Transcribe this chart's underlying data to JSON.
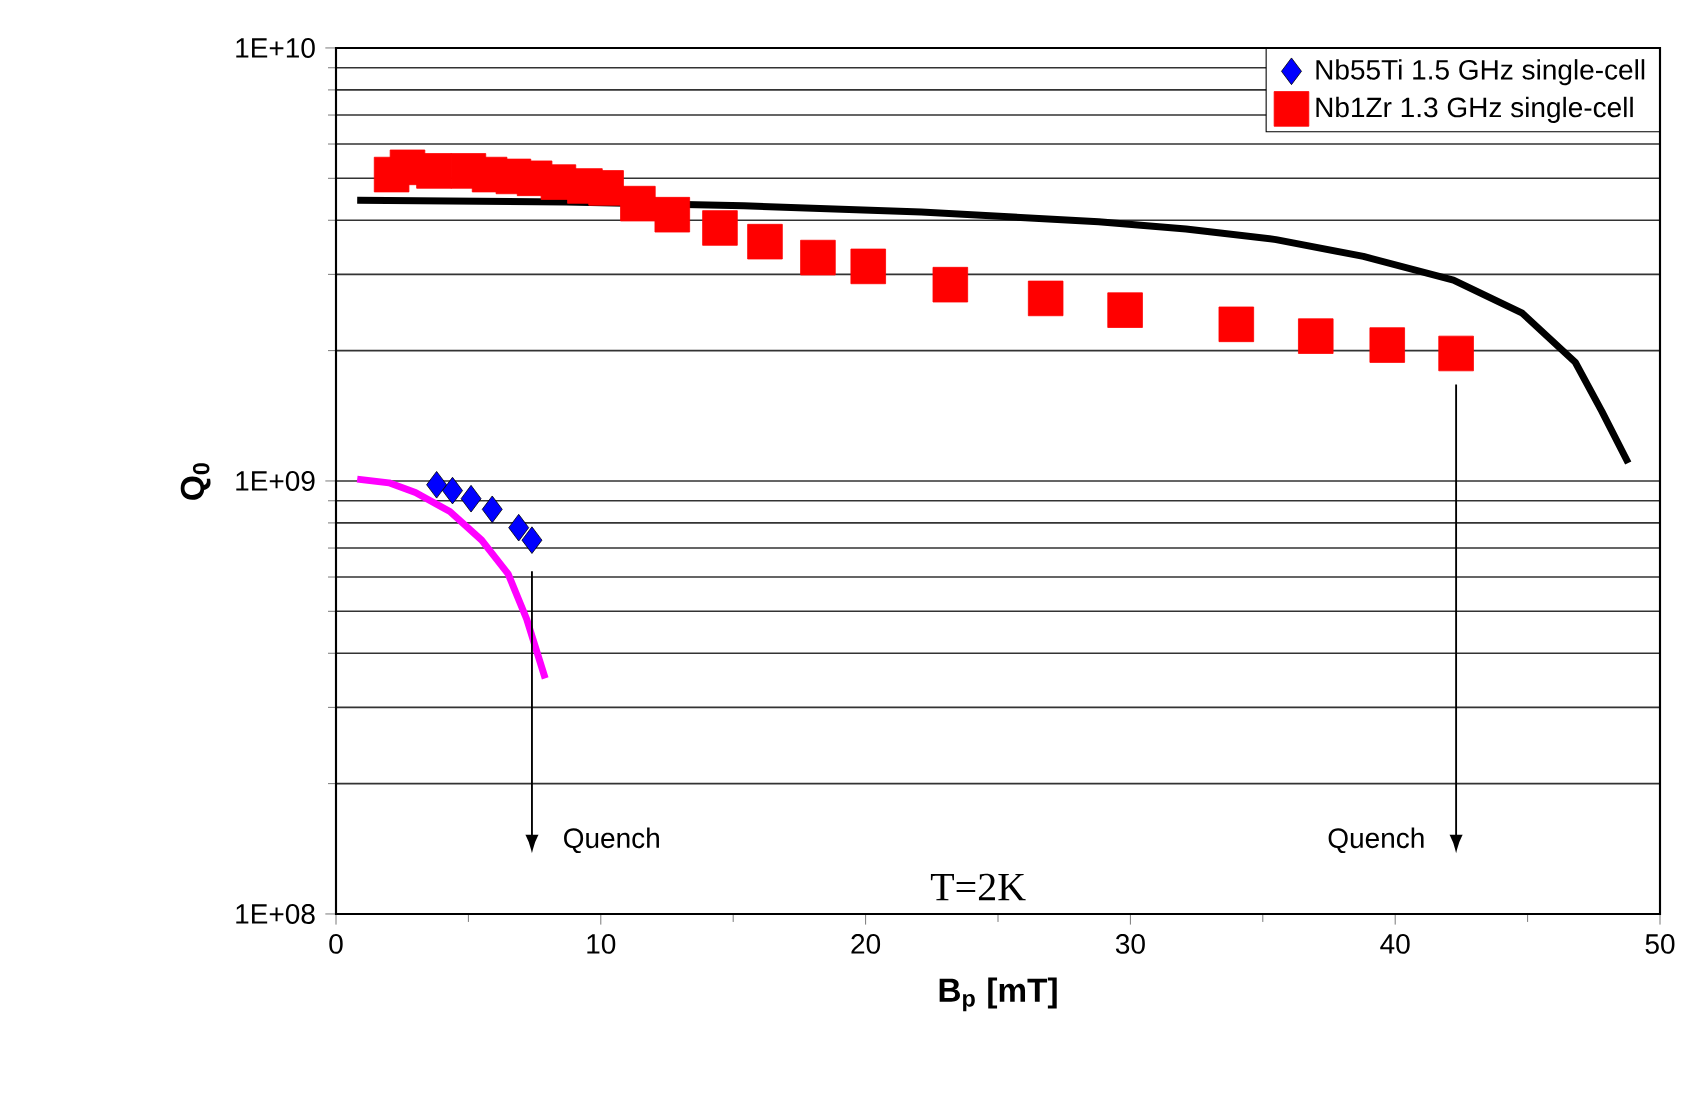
{
  "chart_data": {
    "type": "scatter",
    "xlabel": "B$_{p}$ [mT]",
    "ylabel": "Q$_{0}$",
    "xlim": [
      0,
      50
    ],
    "ylim": [
      100000000.0,
      10000000000.0
    ],
    "xticks": [
      0,
      10,
      20,
      30,
      40,
      50
    ],
    "yticks": [
      {
        "value": 100000000.0,
        "label": "1E+08"
      },
      {
        "value": 1000000000.0,
        "label": "1E+09"
      },
      {
        "value": 10000000000.0,
        "label": "1E+10"
      }
    ],
    "log": "y",
    "grid": "y",
    "legend": "top right",
    "series": [
      {
        "name": "Nb55Ti 1.5 GHz single-cell",
        "marker": "diamond",
        "color": "#0000ff",
        "x": [
          3.8,
          4.4,
          5.1,
          5.9,
          6.9,
          7.4
        ],
        "values": [
          980000000.0,
          950000000.0,
          910000000.0,
          860000000.0,
          780000000.0,
          730000000.0
        ]
      },
      {
        "name": "Nb1Zr 1.3 GHz single-cell",
        "marker": "square",
        "color": "#ff0000",
        "x": [
          2.1,
          2.7,
          3.7,
          5.0,
          5.8,
          6.7,
          7.5,
          8.4,
          9.4,
          10.2,
          11.4,
          12.7,
          14.5,
          16.2,
          18.2,
          20.1,
          23.2,
          26.8,
          29.8,
          34.0,
          37.0,
          39.7,
          42.3
        ],
        "values": [
          5100000000.0,
          5300000000.0,
          5200000000.0,
          5200000000.0,
          5100000000.0,
          5050000000.0,
          5000000000.0,
          4900000000.0,
          4800000000.0,
          4750000000.0,
          4370000000.0,
          4120000000.0,
          3840000000.0,
          3570000000.0,
          3280000000.0,
          3130000000.0,
          2840000000.0,
          2640000000.0,
          2480000000.0,
          2300000000.0,
          2160000000.0,
          2060000000.0,
          1970000000.0
        ]
      },
      {
        "type": "line",
        "marker": "none",
        "color": "#000000",
        "x": [
          0.8,
          8.7,
          15.4,
          22.1,
          28.8,
          32.1,
          35.5,
          38.8,
          42.2,
          44.8,
          46.8,
          47.8,
          48.8
        ],
        "values": [
          4450000000.0,
          4410000000.0,
          4320000000.0,
          4180000000.0,
          3970000000.0,
          3820000000.0,
          3610000000.0,
          3300000000.0,
          2910000000.0,
          2440000000.0,
          1880000000.0,
          1450000000.0,
          1100000000.0
        ]
      },
      {
        "type": "line",
        "marker": "none",
        "color": "#ff00ff",
        "x": [
          0.8,
          2.0,
          3.0,
          4.3,
          5.5,
          6.5,
          7.2,
          7.9
        ],
        "values": [
          1010000000.0,
          990000000.0,
          940000000.0,
          850000000.0,
          730000000.0,
          610000000.0,
          480000000.0,
          350000000.0
        ]
      }
    ],
    "annotations": [
      "Quench",
      "Quench",
      "T=2K"
    ]
  }
}
